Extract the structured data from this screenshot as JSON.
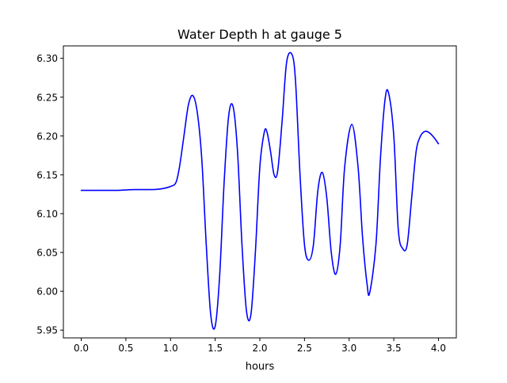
{
  "chart_data": {
    "type": "line",
    "title": "Water Depth h at gauge 5",
    "xlabel": "hours",
    "ylabel": "",
    "xlim": [
      -0.2,
      4.2
    ],
    "ylim": [
      5.94,
      6.316
    ],
    "xticks": [
      0.0,
      0.5,
      1.0,
      1.5,
      2.0,
      2.5,
      3.0,
      3.5,
      4.0
    ],
    "xtick_labels": [
      "0.0",
      "0.5",
      "1.0",
      "1.5",
      "2.0",
      "2.5",
      "3.0",
      "3.5",
      "4.0"
    ],
    "yticks": [
      5.95,
      6.0,
      6.05,
      6.1,
      6.15,
      6.2,
      6.25,
      6.3
    ],
    "ytick_labels": [
      "5.95",
      "6.00",
      "6.05",
      "6.10",
      "6.15",
      "6.20",
      "6.25",
      "6.30"
    ],
    "grid": false,
    "color": "#0000ff",
    "series": [
      {
        "x": [
          0.0,
          0.2,
          0.4,
          0.6,
          0.8,
          0.9,
          1.0,
          1.06,
          1.1,
          1.15,
          1.2,
          1.25,
          1.3,
          1.35,
          1.4,
          1.45,
          1.5,
          1.55,
          1.6,
          1.65,
          1.7,
          1.75,
          1.8,
          1.85,
          1.9,
          1.95,
          2.0,
          2.05,
          2.08,
          2.12,
          2.16,
          2.2,
          2.25,
          2.3,
          2.36,
          2.4,
          2.45,
          2.5,
          2.55,
          2.6,
          2.65,
          2.7,
          2.75,
          2.8,
          2.85,
          2.9,
          2.95,
          3.03,
          3.1,
          3.15,
          3.2,
          3.23,
          3.3,
          3.35,
          3.4,
          3.44,
          3.5,
          3.55,
          3.6,
          3.65,
          3.7,
          3.75,
          3.8,
          3.85,
          3.9,
          3.95,
          4.0
        ],
        "y": [
          6.13,
          6.13,
          6.13,
          6.131,
          6.131,
          6.132,
          6.135,
          6.14,
          6.16,
          6.2,
          6.24,
          6.252,
          6.23,
          6.17,
          6.06,
          5.97,
          5.955,
          6.02,
          6.14,
          6.225,
          6.238,
          6.18,
          6.06,
          5.975,
          5.97,
          6.05,
          6.16,
          6.205,
          6.205,
          6.18,
          6.15,
          6.155,
          6.22,
          6.295,
          6.305,
          6.27,
          6.15,
          6.06,
          6.04,
          6.06,
          6.13,
          6.153,
          6.12,
          6.05,
          6.022,
          6.06,
          6.16,
          6.215,
          6.16,
          6.07,
          6.01,
          5.998,
          6.06,
          6.17,
          6.245,
          6.256,
          6.2,
          6.08,
          6.055,
          6.06,
          6.12,
          6.18,
          6.2,
          6.206,
          6.204,
          6.198,
          6.19
        ]
      }
    ]
  }
}
